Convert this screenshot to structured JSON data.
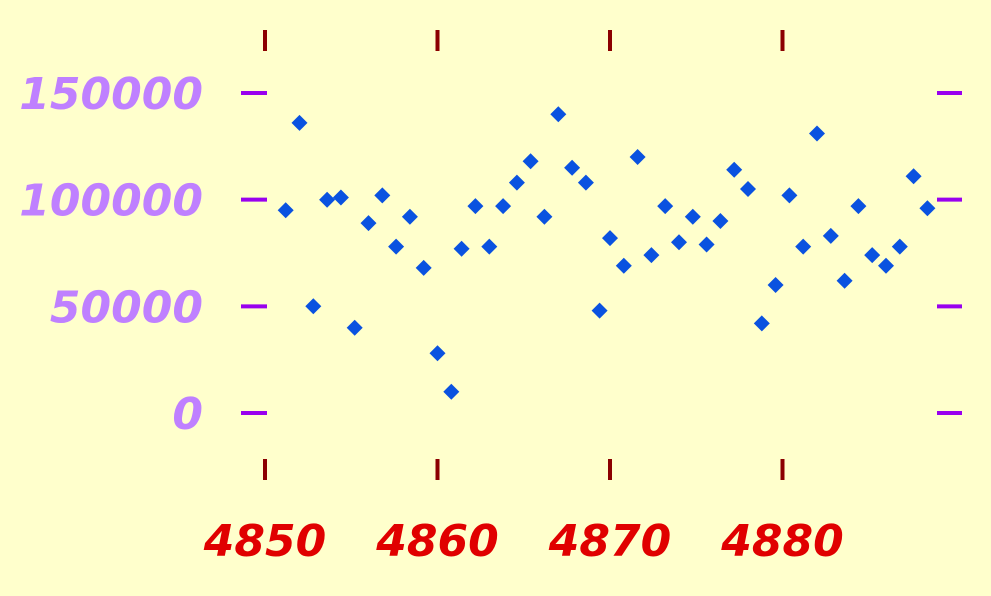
{
  "chart_data": {
    "type": "scatter",
    "title": "",
    "xlabel": "",
    "ylabel": "",
    "xlim": [
      4850,
      4888
    ],
    "ylim": [
      0,
      150000
    ],
    "x_ticks": [
      4850,
      4860,
      4870,
      4880
    ],
    "x_tick_labels": [
      "4850",
      "4860",
      "4870",
      "4880"
    ],
    "y_ticks": [
      0,
      50000,
      100000,
      150000
    ],
    "y_tick_labels": [
      "0",
      "50000",
      "100000",
      "150000"
    ],
    "grid": false,
    "legend": "none",
    "marker": "diamond",
    "colors": {
      "background": "#ffffcc",
      "marker": "#0a52e0",
      "x_tick_mark": "#8b0000",
      "x_tick_label": "#e00000",
      "y_tick_mark": "#9900ee",
      "y_tick_label": "#bf80ff"
    },
    "series": [
      {
        "x": [
          4851.2,
          4852,
          4852.8,
          4853.6,
          4854.4,
          4855.2,
          4856,
          4856.8,
          4857.6,
          4858.4,
          4859.2,
          4860,
          4860.8,
          4861.4,
          4862.2,
          4863,
          4863.8,
          4864.6,
          4865.4,
          4866.2,
          4867,
          4867.8,
          4868.6,
          4869.4,
          4870,
          4870.8,
          4871.6,
          4872.4,
          4873.2,
          4874,
          4874.8,
          4875.6,
          4876.4,
          4877.2,
          4878,
          4878.8,
          4879.6,
          4880.4,
          4881.2,
          4882,
          4882.8,
          4883.6,
          4884.4,
          4885.2,
          4886,
          4886.8,
          4887.6,
          4888.4
        ],
        "y": [
          95000,
          136000,
          50000,
          100000,
          101000,
          40000,
          89000,
          102000,
          78000,
          92000,
          68000,
          28000,
          10000,
          77000,
          97000,
          78000,
          97000,
          108000,
          118000,
          92000,
          140000,
          115000,
          108000,
          48000,
          82000,
          69000,
          120000,
          74000,
          97000,
          80000,
          92000,
          79000,
          90000,
          114000,
          105000,
          42000,
          60000,
          102000,
          78000,
          131000,
          83000,
          62000,
          97000,
          74000,
          69000,
          78000,
          111000,
          96000
        ]
      }
    ]
  }
}
